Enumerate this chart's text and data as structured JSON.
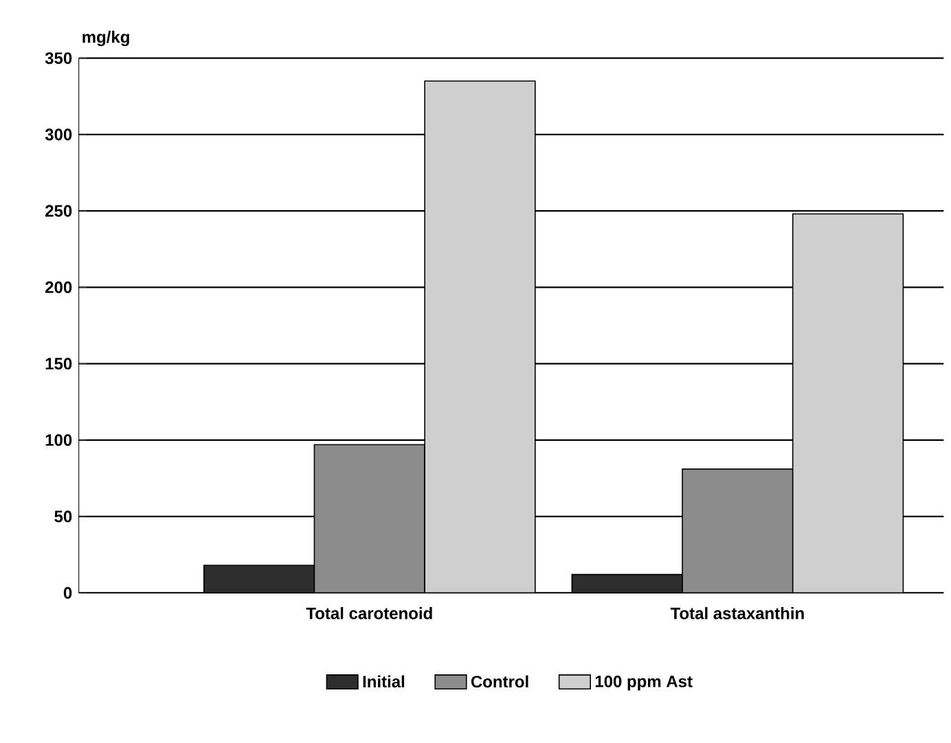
{
  "chart_data": {
    "type": "bar",
    "ylabel": "mg/kg",
    "categories": [
      "Total carotenoid",
      "Total astaxanthin"
    ],
    "series": [
      {
        "name": "Initial",
        "color": "#2e2e2e",
        "values": [
          18,
          12
        ]
      },
      {
        "name": "Control",
        "color": "#8c8c8c",
        "values": [
          97,
          81
        ]
      },
      {
        "name": "100 ppm Ast",
        "color": "#cfcfcf",
        "values": [
          335,
          248
        ]
      }
    ],
    "ylim": [
      0,
      350
    ],
    "yticks": [
      0,
      50,
      100,
      150,
      200,
      250,
      300,
      350
    ],
    "grid": "y",
    "legend": "bottom"
  }
}
